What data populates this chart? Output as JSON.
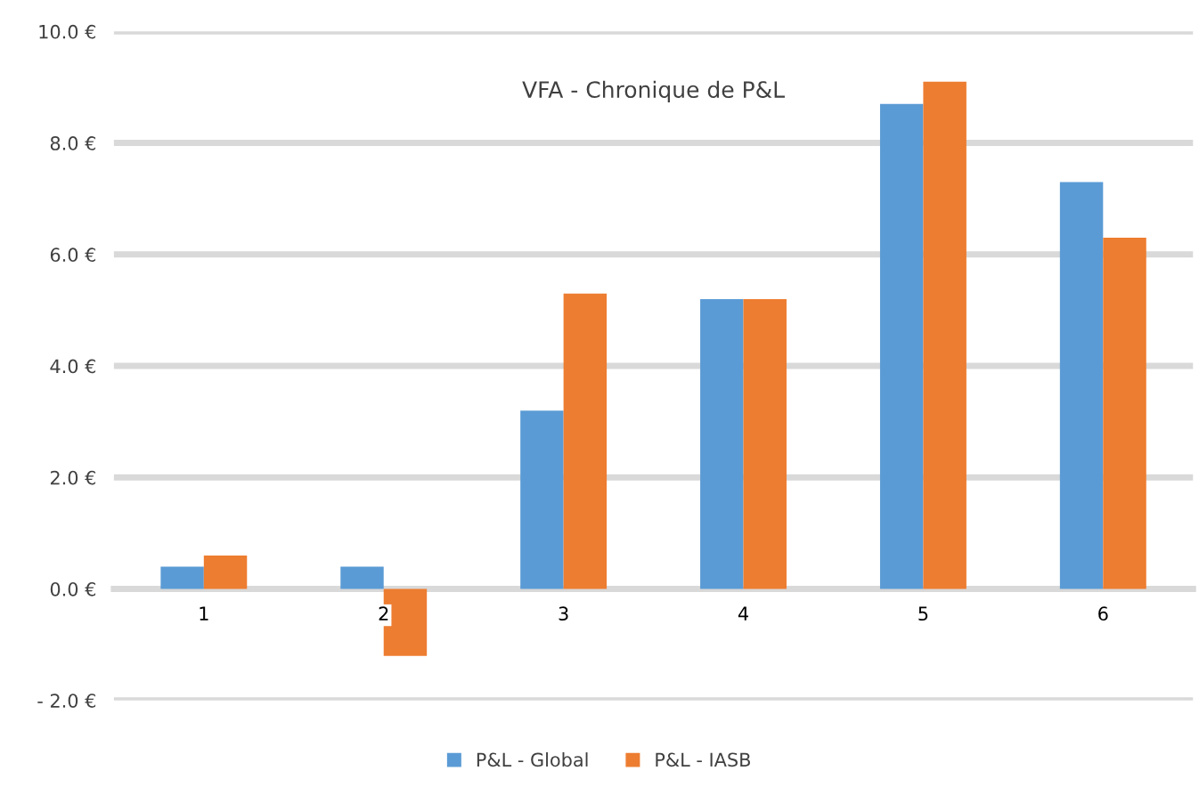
{
  "chart_data": {
    "type": "bar",
    "title": "VFA - Chronique de P&L",
    "categories": [
      "1",
      "2",
      "3",
      "4",
      "5",
      "6"
    ],
    "series": [
      {
        "name": "P&L - Global",
        "color": "#5b9bd5",
        "values": [
          0.4,
          0.4,
          3.2,
          5.2,
          8.7,
          7.3
        ]
      },
      {
        "name": "P&L - IASB",
        "color": "#ed7d31",
        "values": [
          0.6,
          -1.2,
          5.3,
          5.2,
          9.1,
          6.3
        ]
      }
    ],
    "ylim": [
      -2,
      10
    ],
    "yticks": [
      {
        "value": -2,
        "label": "- 2.0 €"
      },
      {
        "value": 0,
        "label": "0.0 €"
      },
      {
        "value": 2,
        "label": "2.0 €"
      },
      {
        "value": 4,
        "label": "4.0 €"
      },
      {
        "value": 6,
        "label": "6.0 €"
      },
      {
        "value": 8,
        "label": "8.0 €"
      },
      {
        "value": 10,
        "label": "10.0 €"
      }
    ],
    "grid": "y",
    "legend": "bottom"
  }
}
